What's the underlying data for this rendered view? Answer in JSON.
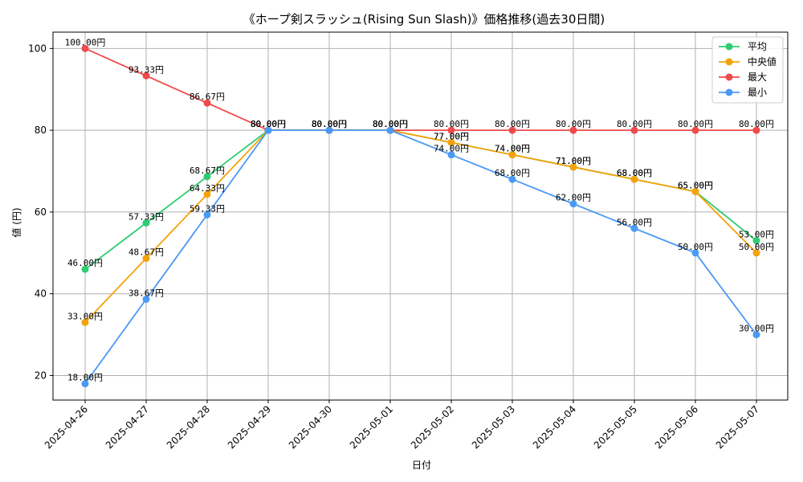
{
  "chart_data": {
    "type": "line",
    "title": "《ホープ剣スラッシュ(Rising Sun Slash)》価格推移(過去30日間)",
    "xlabel": "日付",
    "ylabel": "値 (円)",
    "x": [
      "2025-04-26",
      "2025-04-27",
      "2025-04-28",
      "2025-04-29",
      "2025-04-30",
      "2025-05-01",
      "2025-05-02",
      "2025-05-03",
      "2025-05-04",
      "2025-05-05",
      "2025-05-06",
      "2025-05-07"
    ],
    "ylim": [
      14,
      104
    ],
    "yticks": [
      20,
      40,
      60,
      80,
      100
    ],
    "grid": true,
    "legend_position": "top-right",
    "value_suffix": "円",
    "series": [
      {
        "name": "平均",
        "color": "#2ecc71",
        "values": [
          46.0,
          57.33,
          68.67,
          80.0,
          80.0,
          80.0,
          77.0,
          74.0,
          71.0,
          68.0,
          65.0,
          53.0
        ]
      },
      {
        "name": "中央値",
        "color": "#f5a20a",
        "values": [
          33.0,
          48.67,
          64.33,
          80.0,
          80.0,
          80.0,
          77.0,
          74.0,
          71.0,
          68.0,
          65.0,
          50.0
        ]
      },
      {
        "name": "最大",
        "color": "#f04a4a",
        "values": [
          100.0,
          93.33,
          86.67,
          80.0,
          80.0,
          80.0,
          80.0,
          80.0,
          80.0,
          80.0,
          80.0,
          80.0
        ]
      },
      {
        "name": "最小",
        "color": "#4a9af5",
        "values": [
          18.0,
          38.67,
          59.33,
          80.0,
          80.0,
          80.0,
          74.0,
          68.0,
          62.0,
          56.0,
          50.0,
          30.0
        ]
      }
    ]
  }
}
